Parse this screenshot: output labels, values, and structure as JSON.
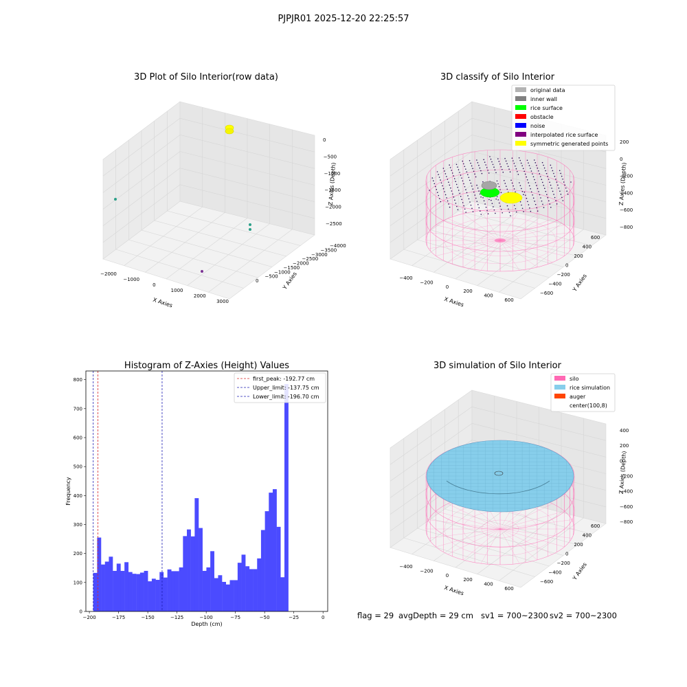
{
  "suptitle": "PJPJR01 2025-12-20 22:25:57",
  "footer": {
    "flag": "flag = 29",
    "avg_depth": "avgDepth = 29 cm",
    "sv1": "sv1 = 700~2300",
    "sv2": "sv2 = 700~2300"
  },
  "colors": {
    "hist_bar": "#4b4bff",
    "first_peak": "#d62728",
    "limits": "#1f1fb4",
    "silo": "#ff69b4",
    "rice_simulation": "#87ceeb",
    "auger": "#ff4500",
    "pane": "#f2f2f2"
  },
  "chart_data": [
    {
      "type": "scatter",
      "projection": "3d",
      "title": "3D Plot of Silo Interior(row data)",
      "xlabel": "X Axies",
      "ylabel": "Y Axies",
      "zlabel": "Z Axies (Depth)",
      "xticks": [
        "−2000",
        "−1000",
        "0",
        "1000",
        "2000",
        "3000"
      ],
      "yticks": [
        "0",
        "−500",
        "−1000",
        "−1500",
        "−2000",
        "−2500",
        "−3000",
        "−3500",
        "−4000"
      ],
      "zticks": [
        "0",
        "−500",
        "−1000",
        "−1500",
        "−2000",
        "−2500"
      ],
      "xlim": [
        -2200,
        3200
      ],
      "ylim": [
        -4100,
        200
      ],
      "zlim": [
        -2800,
        100
      ],
      "points": [
        {
          "x": 400,
          "y": -1300,
          "z": 0,
          "color": "#ffff00"
        },
        {
          "x": -2100,
          "y": -2000,
          "z": -1800,
          "color": "#2ca089"
        },
        {
          "x": 2600,
          "y": -400,
          "z": -2100,
          "color": "#2ca089"
        },
        {
          "x": 2600,
          "y": -450,
          "z": -2250,
          "color": "#2ca089"
        },
        {
          "x": 1900,
          "y": -3700,
          "z": -2300,
          "color": "#7b3294"
        }
      ]
    },
    {
      "type": "scatter",
      "projection": "3d",
      "title": "3D classify of Silo Interior",
      "xlabel": "X Axies",
      "ylabel": "Y Axies",
      "zlabel": "Z Axies (Depth)",
      "xticks": [
        "−400",
        "−200",
        "0",
        "200",
        "400",
        "600"
      ],
      "yticks": [
        "600",
        "400",
        "200",
        "0",
        "−200",
        "−400",
        "−600"
      ],
      "zticks": [
        "200",
        "0",
        "−200",
        "−400",
        "−600",
        "−800"
      ],
      "xlim": [
        -500,
        700
      ],
      "ylim": [
        -650,
        650
      ],
      "zlim": [
        -900,
        300
      ],
      "legend": {
        "placement": "top-right",
        "entries": [
          {
            "label": "original data",
            "color": "#b3b3b3"
          },
          {
            "label": "inner wall",
            "color": "#808080"
          },
          {
            "label": "rice surface",
            "color": "#00ff00"
          },
          {
            "label": "obstacle",
            "color": "#ff0000"
          },
          {
            "label": "noise",
            "color": "#0000ff"
          },
          {
            "label": "interpolated rice surface",
            "color": "#800080"
          },
          {
            "label": "symmetric generated points",
            "color": "#ffff00"
          }
        ]
      }
    },
    {
      "type": "bar",
      "title": "Histogram of Z-Axies (Height) Values",
      "xlabel": "Depth (cm)",
      "ylabel": "Frequency",
      "xlim": [
        -203,
        4
      ],
      "ylim": [
        0,
        830
      ],
      "xticks": [
        -200,
        -175,
        -150,
        -125,
        -100,
        -75,
        -50,
        -25,
        0
      ],
      "yticks": [
        0,
        100,
        200,
        300,
        400,
        500,
        600,
        700,
        800
      ],
      "bin_start": -196.7,
      "bin_width": 3.34,
      "values": [
        133,
        255,
        162,
        172,
        189,
        140,
        165,
        140,
        170,
        136,
        130,
        129,
        134,
        140,
        104,
        113,
        109,
        136,
        117,
        145,
        139,
        139,
        152,
        260,
        283,
        259,
        391,
        288,
        140,
        152,
        208,
        115,
        125,
        102,
        93,
        108,
        108,
        168,
        196,
        156,
        146,
        146,
        183,
        281,
        346,
        410,
        422,
        292,
        118,
        785
      ],
      "vlines": [
        {
          "label": "first_peak: -192.77 cm",
          "x": -192.77,
          "color": "#d62728"
        },
        {
          "label": "Upper_limit: -137.75 cm",
          "x": -137.75,
          "color": "#1f1fb4"
        },
        {
          "label": "Lower_limit: -196.70 cm",
          "x": -196.7,
          "color": "#1f1fb4"
        }
      ],
      "legend": {
        "placement": "top-right"
      }
    },
    {
      "type": "area",
      "projection": "3d",
      "title": "3D simulation of Silo Interior",
      "xlabel": "X Axies",
      "ylabel": "Y Axies",
      "zlabel": "Z Axies (Depth)",
      "xticks": [
        "−400",
        "−200",
        "0",
        "200",
        "400",
        "600"
      ],
      "yticks": [
        "600",
        "400",
        "200",
        "0",
        "−200",
        "−400",
        "−600"
      ],
      "zticks": [
        "400",
        "200",
        "0",
        "−200",
        "−400",
        "−600",
        "−800"
      ],
      "legend": {
        "placement": "top-right",
        "entries": [
          {
            "label": "silo",
            "color": "#ff69b4"
          },
          {
            "label": "rice simulation",
            "color": "#87ceeb"
          },
          {
            "label": "auger",
            "color": "#ff4500"
          },
          {
            "label": "center(100,8)",
            "color": ""
          }
        ]
      }
    }
  ]
}
